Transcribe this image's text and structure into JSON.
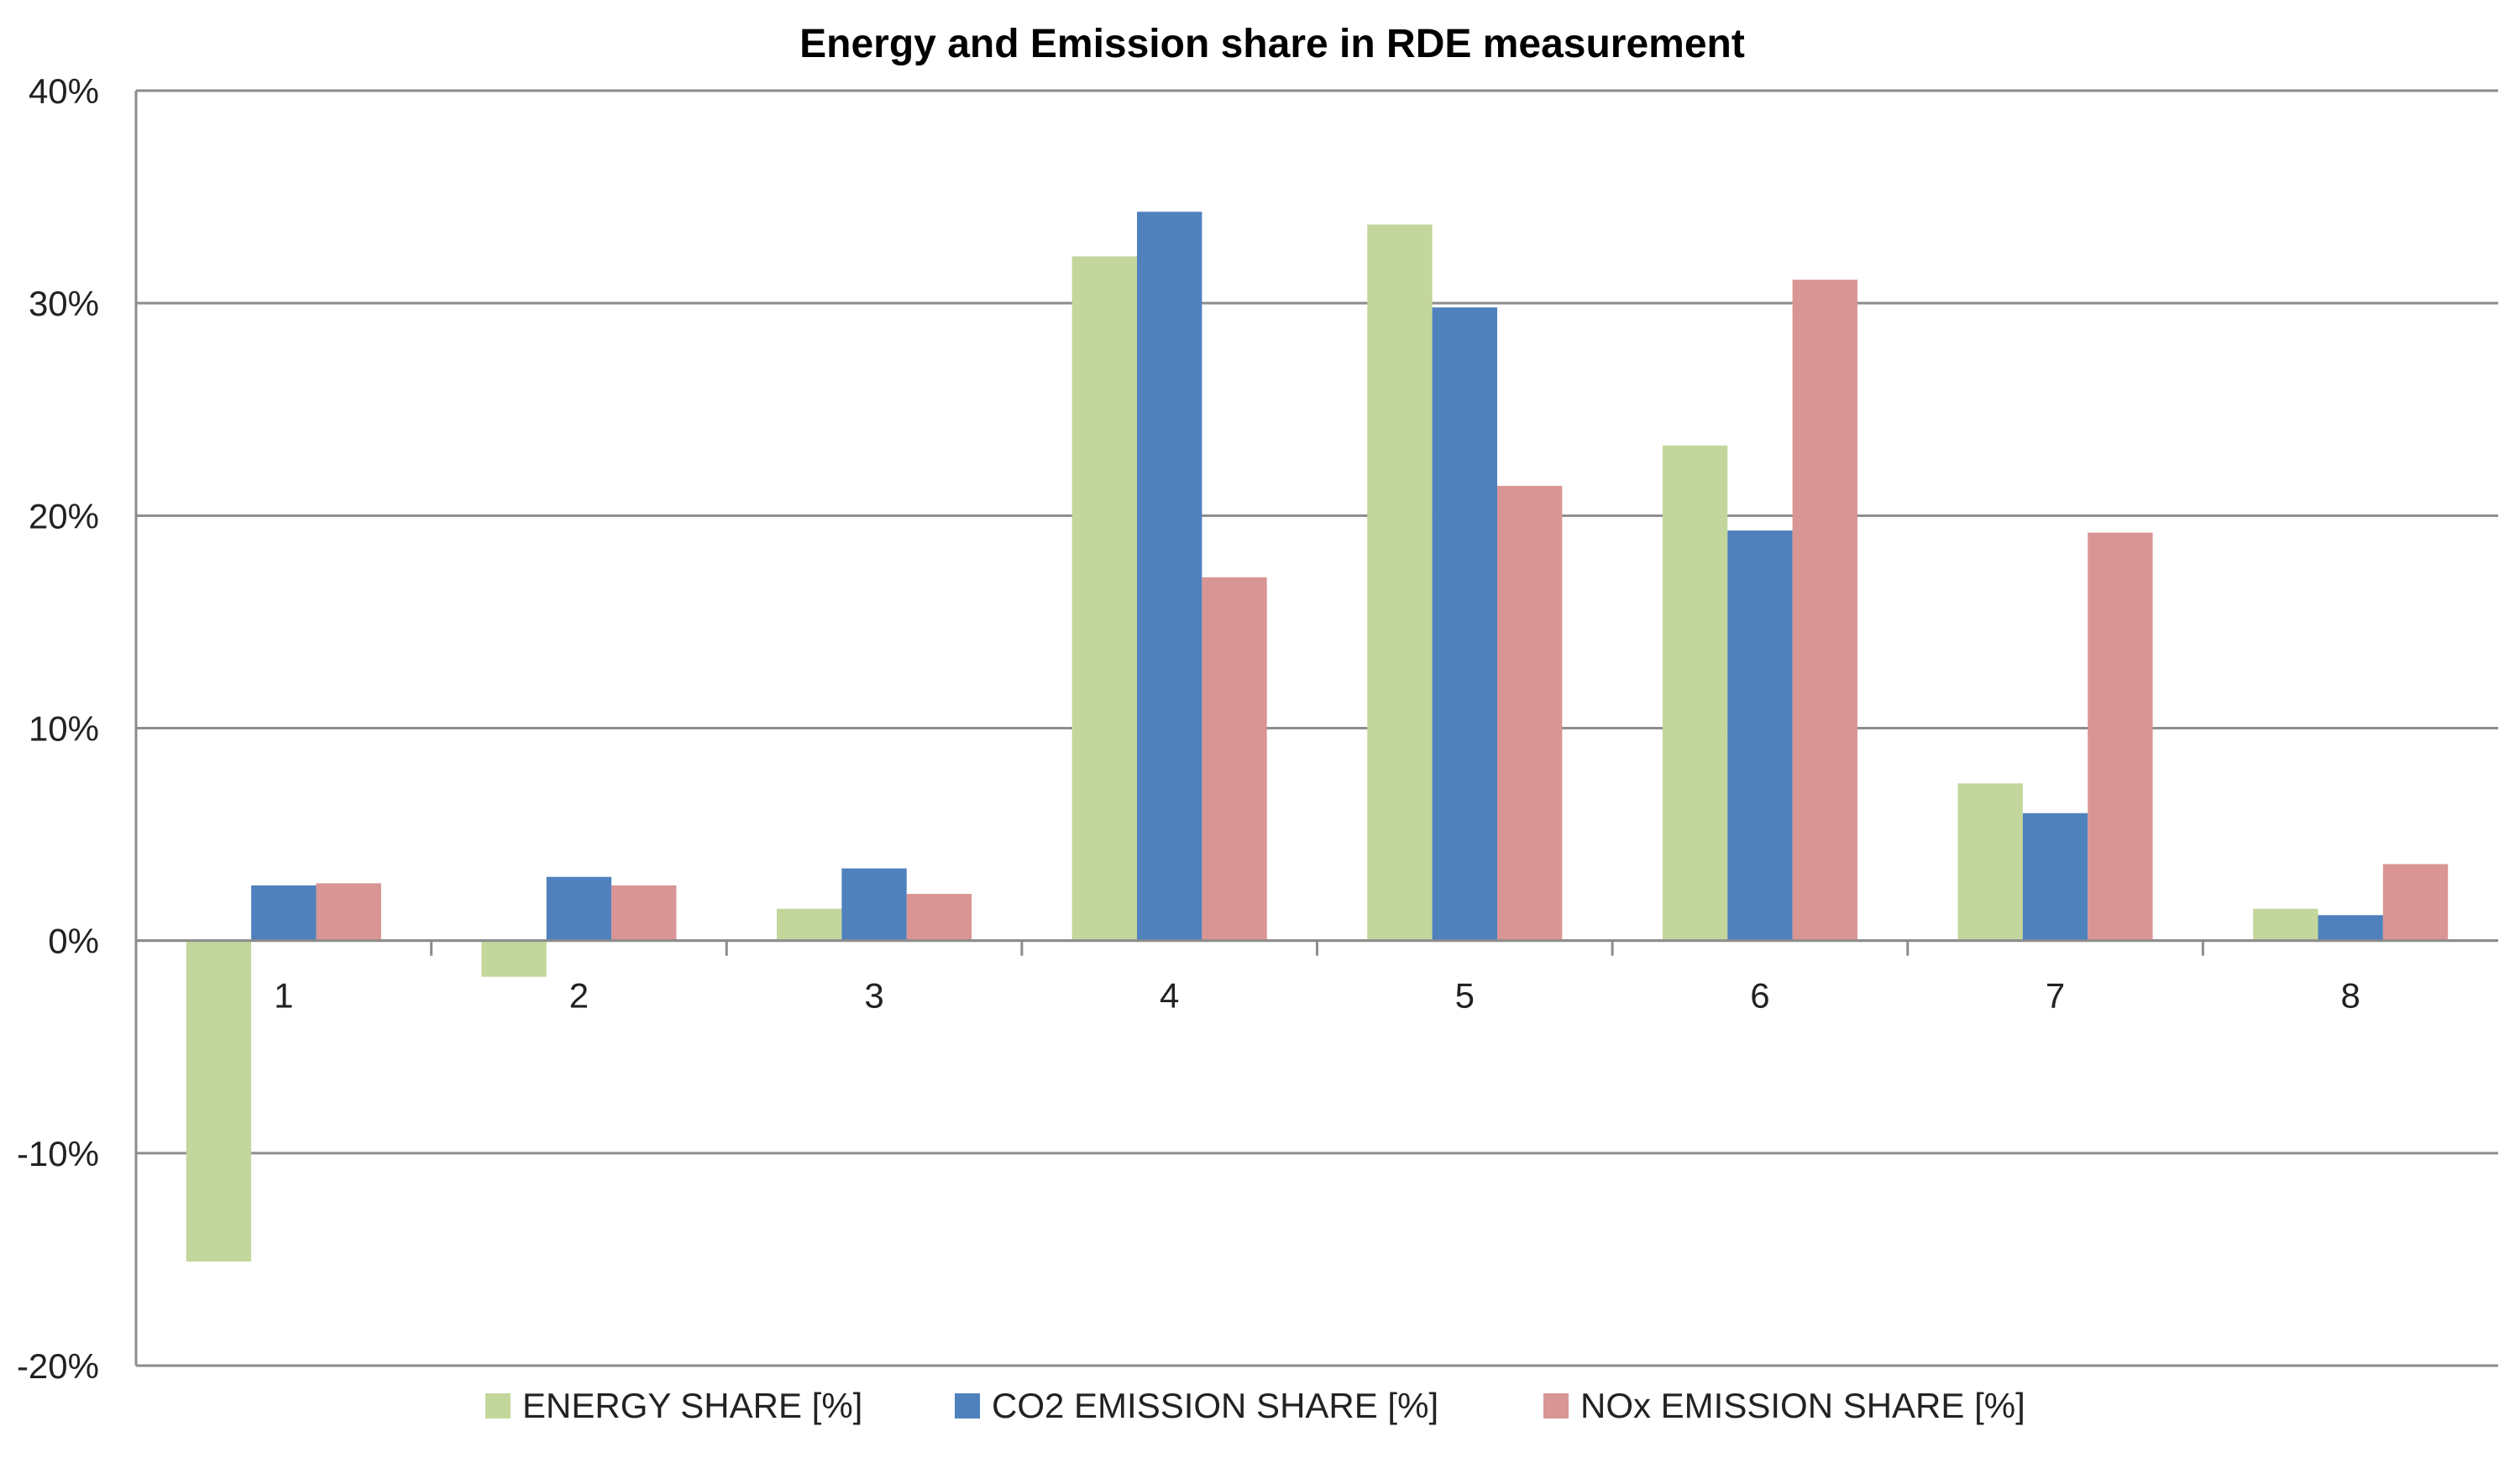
{
  "chart_data": {
    "type": "bar",
    "title": "Energy and Emission share in RDE measurement",
    "xlabel": "",
    "ylabel": "",
    "categories": [
      "1",
      "2",
      "3",
      "4",
      "5",
      "6",
      "7",
      "8"
    ],
    "series": [
      {
        "name": "ENERGY SHARE [%]",
        "color": "#c3d69b",
        "values": [
          -15.1,
          -1.7,
          1.5,
          32.2,
          33.7,
          23.3,
          7.4,
          1.5
        ]
      },
      {
        "name": "CO2 EMISSION SHARE [%]",
        "color": "#4f81bd",
        "values": [
          2.6,
          3.0,
          3.4,
          34.3,
          29.8,
          19.3,
          6.0,
          1.2
        ]
      },
      {
        "name": "NOx EMISSION SHARE [%]",
        "color": "#d99594",
        "values": [
          2.7,
          2.6,
          2.2,
          17.1,
          21.4,
          31.1,
          19.2,
          3.6
        ]
      }
    ],
    "ylim": [
      -20,
      40
    ],
    "yticks": [
      -20,
      -10,
      0,
      10,
      20,
      30,
      40
    ],
    "ytick_labels": [
      "-20%",
      "-10%",
      "0%",
      "10%",
      "20%",
      "30%",
      "40%"
    ],
    "grid": true,
    "legend": "bottom",
    "colors": {
      "gridline": "#8c8c8c",
      "axis": "#8c8c8c"
    }
  }
}
